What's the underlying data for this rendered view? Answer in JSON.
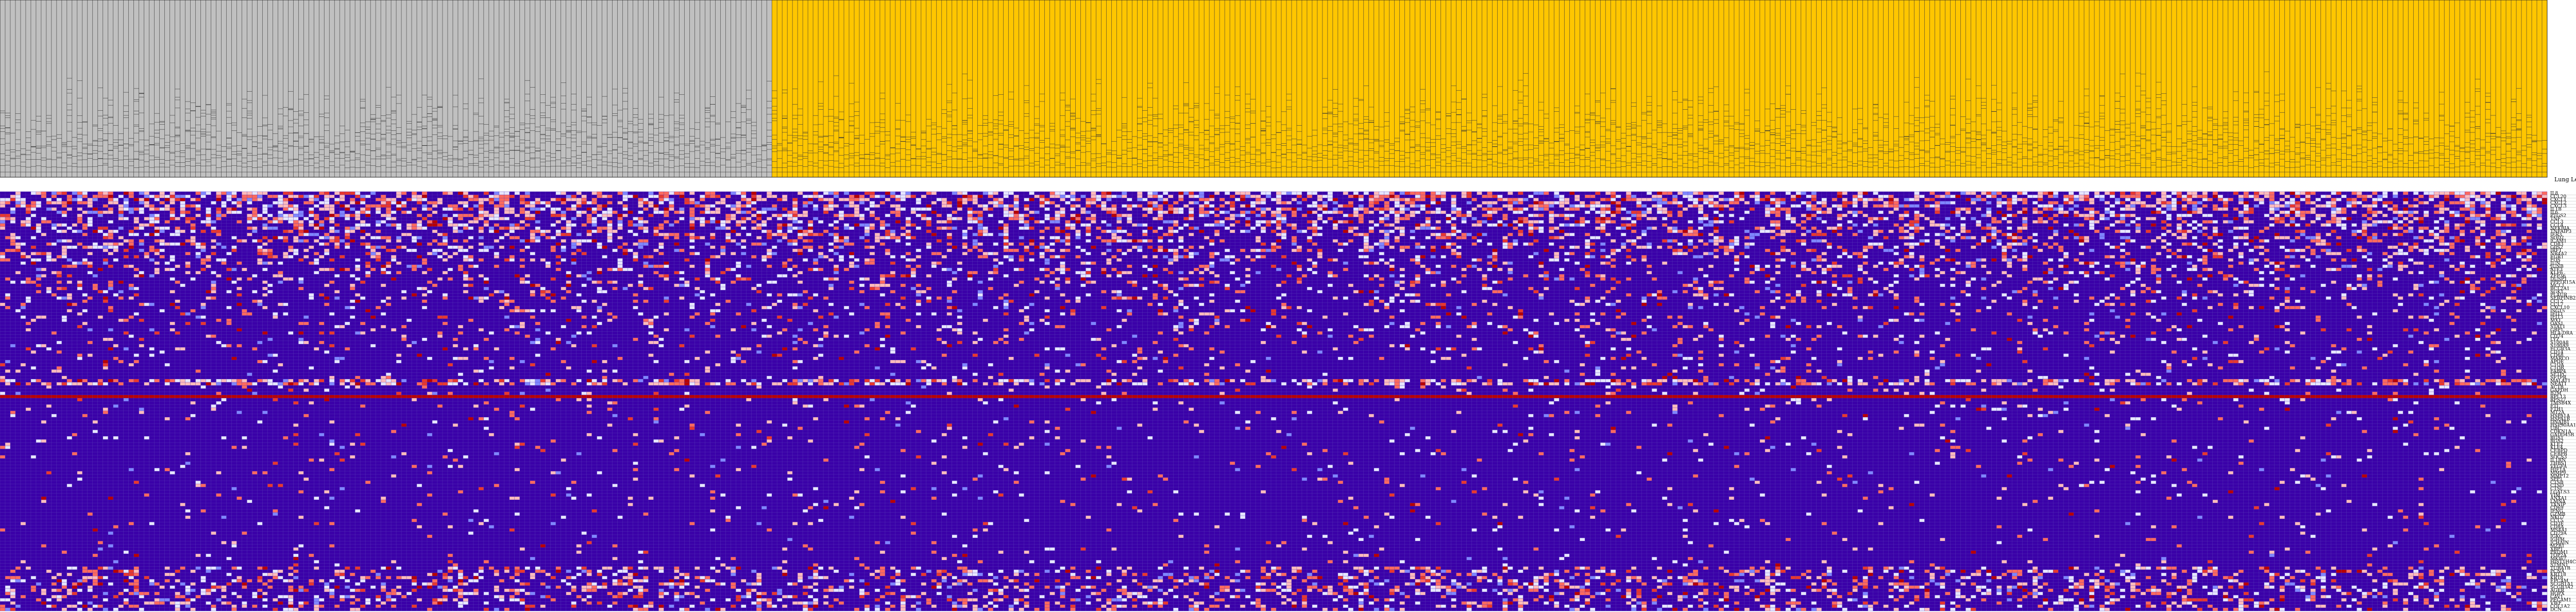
{
  "chart_data": {
    "type": "heatmap",
    "legend_label": "Lung Lesbians",
    "annotation_bar": {
      "groups": [
        {
          "color": "#c0c0c0",
          "count": 150
        },
        {
          "color": "#ffc600",
          "count": 345
        }
      ]
    },
    "color_scale": {
      "background": "#3a00a8",
      "levels": [
        "#3a00a8",
        "#7f86ff",
        "#e6e6ff",
        "#ffbcbc",
        "#ff6a5e",
        "#e8382e",
        "#b80000"
      ]
    },
    "rows": [
      {
        "label": "IL8"
      },
      {
        "label": "CCL20"
      },
      {
        "label": "CXCL1"
      },
      {
        "label": "CXCL2"
      },
      {
        "label": "CXCL3"
      },
      {
        "label": "IL1B"
      },
      {
        "label": "IL6"
      },
      {
        "label": "PTGS2"
      },
      {
        "label": "TNF"
      },
      {
        "label": "CCL3"
      },
      {
        "label": "CCL4"
      },
      {
        "label": "NFKBIA"
      },
      {
        "label": "TNFAIP3"
      },
      {
        "label": "IER3"
      },
      {
        "label": "SOD2"
      },
      {
        "label": "ICAM1"
      },
      {
        "label": "CD83"
      },
      {
        "label": "G0S2"
      },
      {
        "label": "IRF1"
      },
      {
        "label": "NR4A2"
      },
      {
        "label": "EGR1"
      },
      {
        "label": "FOS"
      },
      {
        "label": "JUN"
      },
      {
        "label": "JUNB"
      },
      {
        "label": "ATF3"
      },
      {
        "label": "KLF6"
      },
      {
        "label": "ZFP36"
      },
      {
        "label": "DUSP1"
      },
      {
        "label": "PPP1R15A"
      },
      {
        "label": "MCL1"
      },
      {
        "label": "BCL2A1"
      },
      {
        "label": "SGK1"
      },
      {
        "label": "PLAUR"
      },
      {
        "label": "SERPINB2"
      },
      {
        "label": "CCL2"
      },
      {
        "label": "CCL7"
      },
      {
        "label": "CXCL10"
      },
      {
        "label": "ISG15"
      },
      {
        "label": "IFIT1"
      },
      {
        "label": "IFIT3"
      },
      {
        "label": "MX1"
      },
      {
        "label": "OAS1"
      },
      {
        "label": "STAT1"
      },
      {
        "label": "GBP1"
      },
      {
        "label": "HLA-DRA"
      },
      {
        "label": "CD74"
      },
      {
        "label": "LYZ"
      },
      {
        "label": "S100A8"
      },
      {
        "label": "S100A9"
      },
      {
        "label": "FCGR3A"
      },
      {
        "label": "CD14"
      },
      {
        "label": "CD68"
      },
      {
        "label": "MARCO"
      },
      {
        "label": "APOE"
      },
      {
        "label": "C1QA"
      },
      {
        "label": "C1QB"
      },
      {
        "label": "FABP4"
      },
      {
        "label": "SFTPC"
      },
      {
        "label": "SFTPB"
      },
      {
        "label": "MALAT1"
      },
      {
        "label": "NEAT1"
      },
      {
        "label": "ACTB"
      },
      {
        "label": "GAPDH"
      },
      {
        "label": "B2M"
      },
      {
        "label": "RPL13"
      },
      {
        "label": "RPS27"
      },
      {
        "label": "TMSB4X"
      },
      {
        "label": "FTL"
      },
      {
        "label": "FTH1"
      },
      {
        "label": "MT2A"
      },
      {
        "label": "HSPA1A"
      },
      {
        "label": "HSPA1B"
      },
      {
        "label": "DNAJB1"
      },
      {
        "label": "HSP90AA1"
      },
      {
        "label": "UBC"
      },
      {
        "label": "CDKN1A"
      },
      {
        "label": "GADD45B"
      },
      {
        "label": "RGS1"
      },
      {
        "label": "RGS2"
      },
      {
        "label": "KLF2"
      },
      {
        "label": "KLF4"
      },
      {
        "label": "CEBPD"
      },
      {
        "label": "CEBPB"
      },
      {
        "label": "SOCS3"
      },
      {
        "label": "IL1RN"
      },
      {
        "label": "THBS1"
      },
      {
        "label": "VEGFA"
      },
      {
        "label": "HIF1A"
      },
      {
        "label": "MMP9"
      },
      {
        "label": "MMP12"
      },
      {
        "label": "SPP1"
      },
      {
        "label": "CTSB"
      },
      {
        "label": "CTSD"
      },
      {
        "label": "CTSL"
      },
      {
        "label": "LGALS3"
      },
      {
        "label": "VIM"
      },
      {
        "label": "ANXA1"
      },
      {
        "label": "LMNA"
      },
      {
        "label": "TXNIP"
      },
      {
        "label": "CD69"
      },
      {
        "label": "IFNG"
      },
      {
        "label": "GZMB"
      },
      {
        "label": "NKG7"
      },
      {
        "label": "CCL5"
      },
      {
        "label": "CD3E"
      },
      {
        "label": "CD8A"
      },
      {
        "label": "MS4A1"
      },
      {
        "label": "CD79A"
      },
      {
        "label": "IGKC"
      },
      {
        "label": "IGHM"
      },
      {
        "label": "JCHAIN"
      },
      {
        "label": "MZB1"
      },
      {
        "label": "XBP1"
      },
      {
        "label": "PRDM1"
      },
      {
        "label": "TOP2A"
      },
      {
        "label": "MKI67"
      },
      {
        "label": "HIST1H4C"
      },
      {
        "label": "STMN1"
      },
      {
        "label": "TUBA1B"
      },
      {
        "label": "PCNA"
      },
      {
        "label": "KRT18"
      },
      {
        "label": "KRT8"
      },
      {
        "label": "EPCAM"
      },
      {
        "label": "SCGB1A1"
      },
      {
        "label": "SCGB3A2"
      },
      {
        "label": "AGER"
      },
      {
        "label": "HOPX"
      },
      {
        "label": "CAV1"
      },
      {
        "label": "PECAM1"
      },
      {
        "label": "VWF"
      },
      {
        "label": "COL1A2"
      },
      {
        "label": "DCN"
      }
    ]
  }
}
